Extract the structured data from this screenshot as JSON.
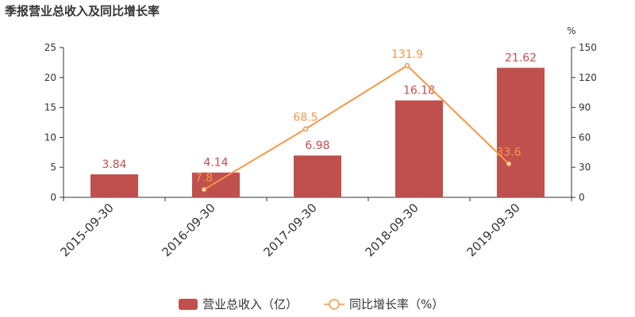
{
  "chart_data": {
    "type": "bar",
    "title": "季报营业总收入及同比增长率",
    "categories": [
      "2015-09-30",
      "2016-09-30",
      "2017-09-30",
      "2018-09-30",
      "2019-09-30"
    ],
    "series": [
      {
        "name": "营业总收入（亿）",
        "type": "bar",
        "axis": "left",
        "color": "#c0504d",
        "values": [
          3.84,
          4.14,
          6.98,
          16.18,
          21.62
        ],
        "labels": [
          "3.84",
          "4.14",
          "6.98",
          "16.18",
          "21.62"
        ]
      },
      {
        "name": "同比增长率（%）",
        "type": "line",
        "axis": "right",
        "color": "#f79646",
        "values": [
          null,
          7.8,
          68.5,
          131.9,
          33.6
        ],
        "labels": [
          "",
          "7.8",
          "68.5",
          "131.9",
          "33.6"
        ]
      }
    ],
    "y_left": {
      "ylim": [
        0,
        25
      ],
      "ticks": [
        0,
        5,
        10,
        15,
        20,
        25
      ]
    },
    "y_right": {
      "ylim": [
        0,
        150
      ],
      "ticks": [
        0,
        30,
        60,
        90,
        120,
        150
      ],
      "unit": "%"
    },
    "legend": "bottom-center",
    "grid": false
  }
}
